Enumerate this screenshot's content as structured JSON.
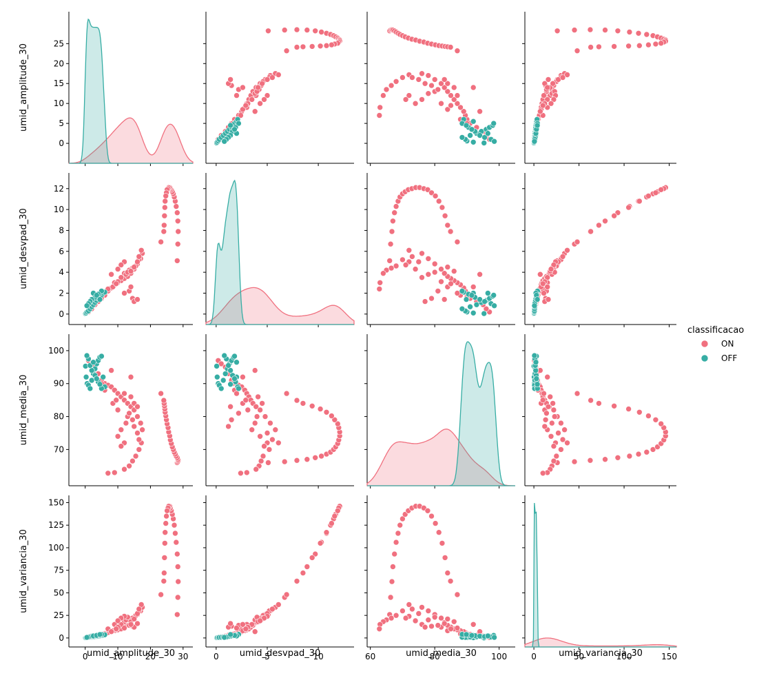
{
  "chart_data": {
    "type": "scatter",
    "subtype": "pairplot",
    "variables": [
      "umid_amplitude_30",
      "umid_desvpad_30",
      "umid_media_30",
      "umid_variancia_30"
    ],
    "ranges": {
      "umid_amplitude_30": [
        -5,
        33
      ],
      "umid_desvpad_30": [
        -1,
        13.5
      ],
      "umid_media_30": [
        59,
        105
      ],
      "umid_variancia_30": [
        -10,
        158
      ]
    },
    "ticks": {
      "umid_amplitude_30": [
        0,
        10,
        20,
        30
      ],
      "umid_desvpad_30": [
        0,
        5,
        10
      ],
      "umid_media_30": [
        60,
        80,
        100
      ],
      "umid_variancia_30": [
        0,
        50,
        100,
        150
      ]
    },
    "yticks": {
      "umid_amplitude_30": [
        0,
        5,
        10,
        15,
        20,
        25
      ],
      "umid_desvpad_30": [
        0,
        2,
        4,
        6,
        8,
        10,
        12
      ],
      "umid_media_30": [
        70,
        80,
        90,
        100
      ],
      "umid_variancia_30": [
        0,
        25,
        50,
        75,
        100,
        125,
        150
      ]
    },
    "diagonal": "kde",
    "grid": false,
    "legend": {
      "title": "classificacao",
      "position": "right",
      "entries": [
        "ON",
        "OFF"
      ]
    },
    "series": [
      {
        "name": "ON",
        "color": "#f0707f",
        "points": [
          [
            28.2,
            5.1,
            66.0,
            26.0
          ],
          [
            28.4,
            6.7,
            66.3,
            45.0
          ],
          [
            28.5,
            7.9,
            66.7,
            62.5
          ],
          [
            28.4,
            8.9,
            67.0,
            79.0
          ],
          [
            28.2,
            9.7,
            67.5,
            93.0
          ],
          [
            27.9,
            10.3,
            68.0,
            106.0
          ],
          [
            27.6,
            10.8,
            68.6,
            116.0
          ],
          [
            27.3,
            11.2,
            69.2,
            125.0
          ],
          [
            27.0,
            11.5,
            70.0,
            132.0
          ],
          [
            26.7,
            11.7,
            70.8,
            137.0
          ],
          [
            26.4,
            11.9,
            71.8,
            141.0
          ],
          [
            26.1,
            12.0,
            72.9,
            144.0
          ],
          [
            25.9,
            12.1,
            74.1,
            146.0
          ],
          [
            25.6,
            12.1,
            75.3,
            146.0
          ],
          [
            25.4,
            12.0,
            76.6,
            144.0
          ],
          [
            25.1,
            11.9,
            77.8,
            141.0
          ],
          [
            24.9,
            11.6,
            79.0,
            135.0
          ],
          [
            24.7,
            11.3,
            80.2,
            127.0
          ],
          [
            24.5,
            10.8,
            81.3,
            117.0
          ],
          [
            24.4,
            10.2,
            82.3,
            105.0
          ],
          [
            24.3,
            9.4,
            83.2,
            89.0
          ],
          [
            24.2,
            8.5,
            84.0,
            72.0
          ],
          [
            24.1,
            7.9,
            84.9,
            63.0
          ],
          [
            23.2,
            6.9,
            87.0,
            48.0
          ],
          [
            1.0,
            0.2,
            97.0,
            0.5
          ],
          [
            2.0,
            0.5,
            96.0,
            1.0
          ],
          [
            3.0,
            0.9,
            95.0,
            2.0
          ],
          [
            4.0,
            1.2,
            93.0,
            3.0
          ],
          [
            5.0,
            1.5,
            91.0,
            4.0
          ],
          [
            6.0,
            1.9,
            90.0,
            5.0
          ],
          [
            7.0,
            2.2,
            89.5,
            6.0
          ],
          [
            8.0,
            2.5,
            89.0,
            7.0
          ],
          [
            9.0,
            2.8,
            88.0,
            8.0
          ],
          [
            10.0,
            3.0,
            87.0,
            9.0
          ],
          [
            11.0,
            3.2,
            86.0,
            10.0
          ],
          [
            12.0,
            3.4,
            85.0,
            12.0
          ],
          [
            13.0,
            3.6,
            84.0,
            14.0
          ],
          [
            14.0,
            3.9,
            83.0,
            17.0
          ],
          [
            15.0,
            4.3,
            82.0,
            22.0
          ],
          [
            16.0,
            4.8,
            80.0,
            26.0
          ],
          [
            17.0,
            5.3,
            78.0,
            30.0
          ],
          [
            17.5,
            5.8,
            76.0,
            34.0
          ],
          [
            17.2,
            6.1,
            72.0,
            37.0
          ],
          [
            16.5,
            5.2,
            70.0,
            30.0
          ],
          [
            15.5,
            4.6,
            68.0,
            25.0
          ],
          [
            14.5,
            4.4,
            66.5,
            22.0
          ],
          [
            13.5,
            4.2,
            65.0,
            20.0
          ],
          [
            12.0,
            3.9,
            64.0,
            18.0
          ],
          [
            9.0,
            3.0,
            63.0,
            15.0
          ],
          [
            7.0,
            2.4,
            62.8,
            10.0
          ],
          [
            11.0,
            3.5,
            76.0,
            15.0
          ],
          [
            12.5,
            3.8,
            78.0,
            20.0
          ],
          [
            13.0,
            4.0,
            80.0,
            23.0
          ],
          [
            10.0,
            3.1,
            82.0,
            12.0
          ],
          [
            8.5,
            2.6,
            84.0,
            8.0
          ],
          [
            9.5,
            2.9,
            85.0,
            10.0
          ],
          [
            14.0,
            4.1,
            86.0,
            18.0
          ],
          [
            15.0,
            4.5,
            84.0,
            21.0
          ],
          [
            16.0,
            5.0,
            75.0,
            27.0
          ],
          [
            16.5,
            5.5,
            73.0,
            32.0
          ],
          [
            12.0,
            5.0,
            72.0,
            24.0
          ],
          [
            11.0,
            4.7,
            71.0,
            22.0
          ],
          [
            10.0,
            4.3,
            74.0,
            19.0
          ],
          [
            6.0,
            1.8,
            88.0,
            4.5
          ],
          [
            5.0,
            1.6,
            90.0,
            4.0
          ],
          [
            13.5,
            2.2,
            81.0,
            14.0
          ],
          [
            14.5,
            1.5,
            79.0,
            13.0
          ],
          [
            15.0,
            1.2,
            77.0,
            12.0
          ],
          [
            16.0,
            1.4,
            83.0,
            16.0
          ],
          [
            12.0,
            2.0,
            87.0,
            11.0
          ],
          [
            14.0,
            2.6,
            92.0,
            15.0
          ],
          [
            8.0,
            3.8,
            94.0,
            7.0
          ]
        ]
      },
      {
        "name": "OFF",
        "color": "#36ada4",
        "points": [
          [
            0.1,
            0.05,
            95.3,
            0.1
          ],
          [
            0.3,
            0.1,
            92.0,
            0.3
          ],
          [
            0.6,
            0.2,
            90.0,
            0.5
          ],
          [
            1.0,
            0.3,
            89.5,
            0.6
          ],
          [
            1.5,
            0.5,
            88.5,
            0.8
          ],
          [
            2.0,
            0.7,
            91.0,
            1.0
          ],
          [
            2.5,
            0.9,
            93.0,
            1.2
          ],
          [
            3.0,
            1.1,
            94.5,
            1.5
          ],
          [
            3.5,
            1.3,
            96.0,
            1.8
          ],
          [
            4.0,
            1.5,
            97.0,
            2.0
          ],
          [
            4.5,
            1.7,
            98.0,
            2.4
          ],
          [
            5.0,
            1.8,
            98.3,
            2.8
          ],
          [
            5.5,
            2.0,
            92.0,
            3.0
          ],
          [
            6.0,
            2.1,
            89.0,
            3.5
          ],
          [
            5.0,
            2.2,
            88.5,
            4.0
          ],
          [
            4.0,
            1.9,
            90.5,
            3.2
          ],
          [
            3.0,
            1.6,
            92.5,
            2.5
          ],
          [
            2.0,
            1.4,
            94.0,
            2.0
          ],
          [
            1.5,
            1.2,
            95.5,
            1.5
          ],
          [
            1.0,
            1.0,
            97.5,
            1.0
          ],
          [
            0.5,
            0.8,
            98.5,
            0.6
          ],
          [
            2.5,
            2.0,
            96.5,
            2.2
          ],
          [
            3.5,
            1.8,
            91.5,
            2.8
          ],
          [
            4.5,
            1.4,
            89.8,
            3.8
          ]
        ]
      }
    ]
  }
}
